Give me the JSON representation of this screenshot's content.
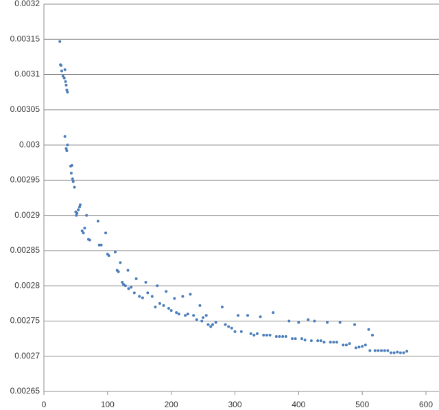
{
  "chart_data": {
    "type": "scatter",
    "color": "#4a7ebb",
    "grid": true,
    "xlim": [
      0,
      600
    ],
    "xticks": [
      0,
      100,
      200,
      300,
      400,
      500,
      600
    ],
    "ylim": [
      0.00265,
      0.0032
    ],
    "yticks": [
      0.00265,
      0.0027,
      0.00275,
      0.0028,
      0.00285,
      0.0029,
      0.00295,
      0.003,
      0.00305,
      0.0031,
      0.00315,
      0.0032
    ],
    "x": [
      25,
      26,
      27,
      28,
      30,
      32,
      33,
      34,
      35,
      36,
      37,
      33,
      35,
      36,
      37,
      42,
      44,
      43,
      45,
      46,
      48,
      50,
      51,
      52,
      54,
      56,
      57,
      60,
      62,
      64,
      67,
      70,
      72,
      85,
      87,
      90,
      97,
      100,
      102,
      112,
      115,
      117,
      120,
      123,
      125,
      128,
      132,
      133,
      137,
      142,
      145,
      150,
      155,
      160,
      163,
      170,
      175,
      178,
      182,
      188,
      192,
      196,
      200,
      205,
      208,
      212,
      218,
      222,
      226,
      230,
      235,
      240,
      245,
      248,
      250,
      255,
      258,
      262,
      265,
      270,
      280,
      285,
      290,
      295,
      300,
      305,
      310,
      320,
      325,
      330,
      335,
      340,
      345,
      350,
      355,
      360,
      365,
      370,
      375,
      380,
      385,
      390,
      395,
      400,
      405,
      410,
      415,
      420,
      425,
      430,
      435,
      440,
      445,
      450,
      455,
      460,
      465,
      470,
      475,
      480,
      488,
      490,
      495,
      500,
      505,
      510,
      512,
      516,
      520,
      525,
      530,
      535,
      540,
      545,
      550,
      555,
      560,
      565,
      570
    ],
    "values": [
      0.003147,
      0.003114,
      0.003113,
      0.003105,
      0.003098,
      0.003095,
      0.003107,
      0.00309,
      0.003085,
      0.003078,
      0.003075,
      0.003012,
      0.002995,
      0.002992,
      0.003,
      0.00297,
      0.002971,
      0.00296,
      0.002952,
      0.002948,
      0.00294,
      0.002905,
      0.0029,
      0.002903,
      0.002908,
      0.002912,
      0.002915,
      0.002878,
      0.002875,
      0.002882,
      0.0029,
      0.002866,
      0.002865,
      0.002892,
      0.002858,
      0.002858,
      0.002875,
      0.002845,
      0.002843,
      0.002848,
      0.002822,
      0.00282,
      0.002833,
      0.002805,
      0.002802,
      0.0028,
      0.002822,
      0.002796,
      0.002798,
      0.00279,
      0.00281,
      0.002785,
      0.002783,
      0.002805,
      0.00279,
      0.002785,
      0.00277,
      0.0028,
      0.002775,
      0.002772,
      0.002792,
      0.002768,
      0.002765,
      0.002782,
      0.002762,
      0.00276,
      0.002785,
      0.002758,
      0.00276,
      0.002788,
      0.002758,
      0.002752,
      0.002772,
      0.00275,
      0.002755,
      0.002758,
      0.002745,
      0.002742,
      0.002745,
      0.002748,
      0.00277,
      0.002745,
      0.002742,
      0.00274,
      0.002735,
      0.002758,
      0.002735,
      0.002758,
      0.002732,
      0.00273,
      0.002732,
      0.002756,
      0.00273,
      0.00273,
      0.00273,
      0.002762,
      0.002728,
      0.002728,
      0.002728,
      0.002728,
      0.00275,
      0.002725,
      0.002725,
      0.002748,
      0.002725,
      0.002723,
      0.002752,
      0.002722,
      0.00275,
      0.002722,
      0.002722,
      0.00272,
      0.002748,
      0.00272,
      0.00272,
      0.00272,
      0.002748,
      0.002716,
      0.002716,
      0.002718,
      0.002745,
      0.002712,
      0.002713,
      0.002714,
      0.002716,
      0.002738,
      0.002708,
      0.00273,
      0.002708,
      0.002708,
      0.002708,
      0.002708,
      0.002708,
      0.002705,
      0.002705,
      0.002706,
      0.002705,
      0.002705,
      0.002707
    ]
  }
}
